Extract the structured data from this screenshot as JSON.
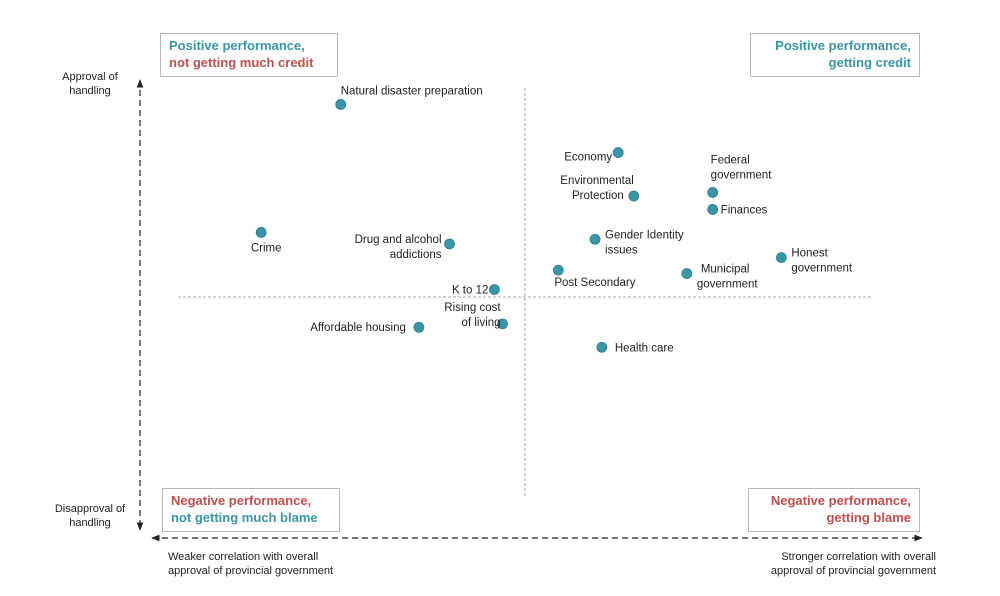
{
  "colors": {
    "point": "#3a95a8",
    "point_stroke": "#2b7f91",
    "positive_text": "#3a95a8",
    "negative_text": "#c0504d",
    "axis": "#222222",
    "divider": "#a6a6a6"
  },
  "quadrants": {
    "top_left": {
      "line1": "Positive performance,",
      "line2": "not getting much credit"
    },
    "top_right": {
      "line1": "Positive performance,",
      "line2": "getting credit"
    },
    "bottom_left": {
      "line1": "Negative performance,",
      "line2": "not getting much blame"
    },
    "bottom_right": {
      "line1": "Negative performance,",
      "line2": "getting blame"
    }
  },
  "axes": {
    "y_top_label": "Approval of handling",
    "y_bottom_label": "Disapproval of handling",
    "x_left_label": "Weaker correlation with overall approval of provincial government",
    "x_right_label": "Stronger correlation with overall approval of provincial government"
  },
  "chart_data": {
    "type": "scatter",
    "x_axis": {
      "min_label": "Weaker correlation with overall approval of provincial government",
      "max_label": "Stronger correlation with overall approval of provincial government"
    },
    "y_axis": {
      "min_label": "Disapproval of handling",
      "max_label": "Approval of handling"
    },
    "grid": false,
    "points": [
      {
        "label": "Natural disaster preparation",
        "x": 0.229,
        "y": 0.904
      },
      {
        "label": "Economy",
        "x": 0.637,
        "y": 0.678
      },
      {
        "label": "Federal government",
        "x": 0.776,
        "y": 0.491
      },
      {
        "label": "Environmental Protection",
        "x": 0.66,
        "y": 0.474
      },
      {
        "label": "Finances",
        "x": 0.776,
        "y": 0.411
      },
      {
        "label": "Crime",
        "x": 0.112,
        "y": 0.303
      },
      {
        "label": "Drug and alcohol addictions",
        "x": 0.389,
        "y": 0.249
      },
      {
        "label": "Gender Identity issues",
        "x": 0.603,
        "y": 0.271
      },
      {
        "label": "Honest government",
        "x": 0.877,
        "y": 0.185
      },
      {
        "label": "Post Secondary",
        "x": 0.549,
        "y": 0.126
      },
      {
        "label": "Municipal government",
        "x": 0.738,
        "y": 0.11
      },
      {
        "label": "K to 12",
        "x": 0.455,
        "y": 0.035
      },
      {
        "label": "Rising cost of living",
        "x": 0.467,
        "y": -0.126
      },
      {
        "label": "Affordable housing",
        "x": 0.344,
        "y": -0.142
      },
      {
        "label": "Health care",
        "x": 0.613,
        "y": -0.236
      }
    ]
  }
}
